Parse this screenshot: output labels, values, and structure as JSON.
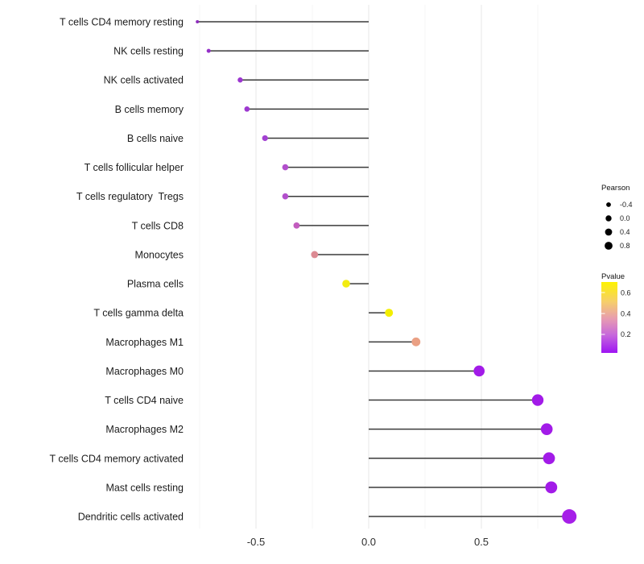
{
  "chart_data": {
    "type": "scatter",
    "subtype": "lollipop",
    "title": "",
    "xlabel": "",
    "ylabel": "",
    "x_axis": {
      "tick_values": [
        -0.5,
        0.0,
        0.5
      ],
      "tick_labels": [
        "-0.5",
        "0.0",
        "0.5"
      ],
      "minor_gridline_values": [
        -0.75,
        -0.25,
        0.25,
        0.75
      ],
      "xlim": [
        -0.84,
        0.97
      ],
      "grid": true
    },
    "points": [
      {
        "label": "T cells CD4 memory resting",
        "pearson": -0.76,
        "dot_radius": 2.0,
        "color": "#8D2CBC"
      },
      {
        "label": "NK cells resting",
        "pearson": -0.71,
        "dot_radius": 2.5,
        "color": "#9430C8"
      },
      {
        "label": "NK cells activated",
        "pearson": -0.57,
        "dot_radius": 3.2,
        "color": "#9C36D0"
      },
      {
        "label": "B cells memory",
        "pearson": -0.54,
        "dot_radius": 3.3,
        "color": "#9D38D0"
      },
      {
        "label": "B cells naive",
        "pearson": -0.46,
        "dot_radius": 3.6,
        "color": "#A341D2"
      },
      {
        "label": "T cells follicular helper",
        "pearson": -0.37,
        "dot_radius": 3.8,
        "color": "#B24FCC"
      },
      {
        "label": "T cells regulatory  Tregs",
        "pearson": -0.37,
        "dot_radius": 3.8,
        "color": "#B250CC"
      },
      {
        "label": "T cells CD8",
        "pearson": -0.32,
        "dot_radius": 3.9,
        "color": "#C25CBE"
      },
      {
        "label": "Monocytes",
        "pearson": -0.24,
        "dot_radius": 4.4,
        "color": "#DC8A93"
      },
      {
        "label": "Plasma cells",
        "pearson": -0.1,
        "dot_radius": 4.8,
        "color": "#F2EC10"
      },
      {
        "label": "T cells gamma delta",
        "pearson": 0.09,
        "dot_radius": 5.0,
        "color": "#F3EE00"
      },
      {
        "label": "Macrophages M1",
        "pearson": 0.21,
        "dot_radius": 5.4,
        "color": "#EAA084"
      },
      {
        "label": "Macrophages M0",
        "pearson": 0.49,
        "dot_radius": 6.8,
        "color": "#A21BE8"
      },
      {
        "label": "T cells CD4 naive",
        "pearson": 0.75,
        "dot_radius": 7.2,
        "color": "#A21BE8"
      },
      {
        "label": "Macrophages M2",
        "pearson": 0.79,
        "dot_radius": 7.3,
        "color": "#A21BE8"
      },
      {
        "label": "T cells CD4 memory activated",
        "pearson": 0.8,
        "dot_radius": 7.4,
        "color": "#A21BE8"
      },
      {
        "label": "Mast cells resting",
        "pearson": 0.81,
        "dot_radius": 7.4,
        "color": "#A21BE8"
      },
      {
        "label": "Dendritic cells activated",
        "pearson": 0.89,
        "dot_radius": 9.0,
        "color": "#A61FE8"
      }
    ],
    "legends": {
      "size": {
        "title": "Pearson",
        "dot_color": "#000000",
        "entries": [
          {
            "label": "-0.4",
            "radius": 2.9
          },
          {
            "label": "0.0",
            "radius": 3.7
          },
          {
            "label": "0.4",
            "radius": 4.4
          },
          {
            "label": "0.8",
            "radius": 4.9
          }
        ]
      },
      "color": {
        "title": "Pvalue",
        "gradient": [
          {
            "offset": 0.0,
            "color": "#FDF301"
          },
          {
            "offset": 0.28,
            "color": "#F6CE6B"
          },
          {
            "offset": 0.52,
            "color": "#E79BB1"
          },
          {
            "offset": 0.75,
            "color": "#C667DC"
          },
          {
            "offset": 1.0,
            "color": "#9E14F2"
          }
        ],
        "ticks": [
          {
            "label": "0.6",
            "pos": 0.149
          },
          {
            "label": "0.4",
            "pos": 0.445
          },
          {
            "label": "0.2",
            "pos": 0.739
          }
        ]
      }
    },
    "style": {
      "background": "#FFFFFF",
      "stem_color": "#3A3A3A",
      "grid_major_color": "#E7E7E7",
      "grid_minor_color": "#F3F3F3",
      "axis_text_color": "#2E2E2E",
      "category_text_color": "#1C1C1C"
    }
  }
}
